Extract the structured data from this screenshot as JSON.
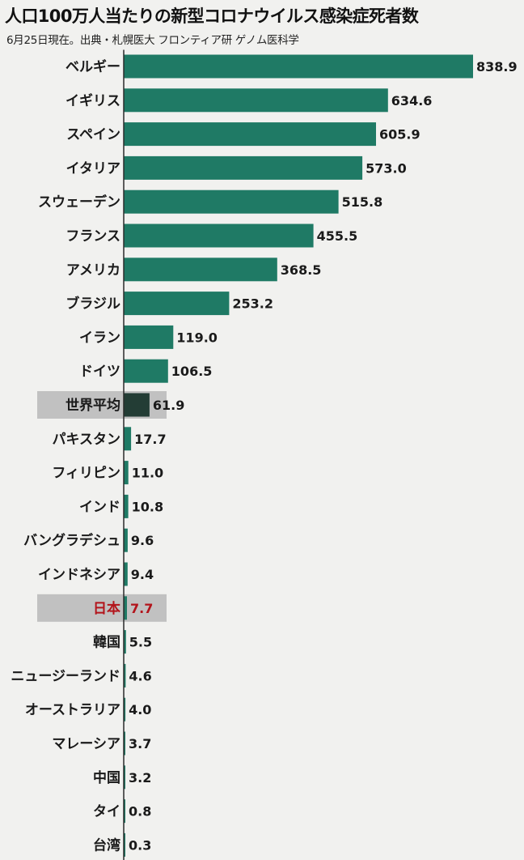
{
  "header": {
    "title": "人口100万人当たりの新型コロナウイルス感染症死者数",
    "subtitle": "6月25日現在。出典・札幌医大 フロンティア研 ゲノム医科学"
  },
  "colors": {
    "bar": "#1f7a65",
    "bar_world": "#233d35",
    "highlight_band": "#b9b9b9",
    "axis_line": "#2b2b2b",
    "japan_text": "#b3141b"
  },
  "chart_data": {
    "type": "bar",
    "orientation": "horizontal",
    "title": "人口100万人当たりの新型コロナウイルス感染症死者数",
    "subtitle": "6月25日現在。出典・札幌医大 フロンティア研 ゲノム医科学",
    "categories": [
      "ベルギー",
      "イギリス",
      "スペイン",
      "イタリア",
      "スウェーデン",
      "フランス",
      "アメリカ",
      "ブラジル",
      "イラン",
      "ドイツ",
      "世界平均",
      "パキスタン",
      "フィリピン",
      "インド",
      "バングラデシュ",
      "インドネシア",
      "日本",
      "韓国",
      "ニュージーランド",
      "オーストラリア",
      "マレーシア",
      "中国",
      "タイ",
      "台湾"
    ],
    "values": [
      838.9,
      634.6,
      605.9,
      573.0,
      515.8,
      455.5,
      368.5,
      253.2,
      119.0,
      106.5,
      61.9,
      17.7,
      11.0,
      10.8,
      9.6,
      9.4,
      7.7,
      5.5,
      4.6,
      4.0,
      3.7,
      3.2,
      0.8,
      0.3
    ],
    "value_labels": [
      "838.9",
      "634.6",
      "605.9",
      "573.0",
      "515.8",
      "455.5",
      "368.5",
      "253.2",
      "119.0",
      "106.5",
      "61.9",
      "17.7",
      "11.0",
      "10.8",
      "9.6",
      "9.4",
      "7.7",
      "5.5",
      "4.6",
      "4.0",
      "3.7",
      "3.2",
      "0.8",
      "0.3"
    ],
    "highlights": {
      "世界平均": "world-average",
      "日本": "japan"
    },
    "xlim": [
      0,
      838.9
    ],
    "xlabel": "",
    "ylabel": "",
    "grid": false,
    "legend": "none"
  }
}
